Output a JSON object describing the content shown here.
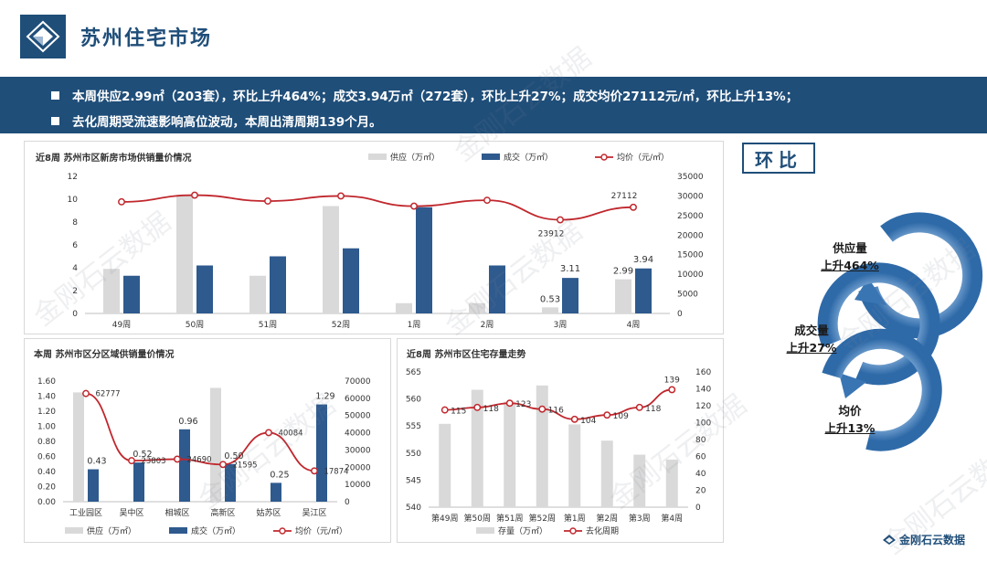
{
  "header": {
    "title": "苏州住宅市场"
  },
  "summary": [
    "本周供应2.99㎡（203套），环比上升464%；成交3.94万㎡（272套），环比上升27%；成交均价27112元/㎡，环比上升13%；",
    "去化周期受流速影响高位波动，本周出清周期139个月。"
  ],
  "watermark": "金刚石云数据",
  "footer": {
    "brand": "金刚石云数据"
  },
  "cycle": {
    "title": "环比",
    "items": [
      {
        "label": "供应量",
        "value": "上升464%"
      },
      {
        "label": "成交量",
        "value": "上升27%"
      },
      {
        "label": "均价",
        "value": "上升13%"
      }
    ]
  },
  "colors": {
    "supply": "#d9d9d9",
    "deal": "#2e5a8e",
    "price": "#c0272d",
    "brand": "#1f4e79"
  },
  "chart_data": [
    {
      "type": "bar",
      "title": "近8周  苏州市区新房市场供销量价情况",
      "categories": [
        "49周",
        "50周",
        "51周",
        "52周",
        "1周",
        "2周",
        "3周",
        "4周"
      ],
      "series": [
        {
          "name": "供应（万㎡）",
          "kind": "bar",
          "axis": "left",
          "values": [
            3.9,
            10.3,
            3.3,
            9.4,
            0.9,
            0.9,
            0.53,
            2.99
          ]
        },
        {
          "name": "成交（万㎡）",
          "kind": "bar",
          "axis": "left",
          "values": [
            3.3,
            4.2,
            5.0,
            5.7,
            9.3,
            4.2,
            3.11,
            3.94
          ]
        },
        {
          "name": "均价（元/㎡）",
          "kind": "line",
          "axis": "right",
          "values": [
            28500,
            30200,
            28700,
            30000,
            27400,
            28900,
            23912,
            27112
          ]
        }
      ],
      "data_labels": {
        "bars": [
          "",
          "",
          "",
          "",
          "",
          "",
          "0.53|3.11",
          "2.99|3.94"
        ],
        "line": [
          "",
          "",
          "",
          "",
          "",
          "",
          "23912",
          "27112"
        ]
      },
      "ylim_left": [
        0,
        12
      ],
      "yticks_left": [
        "0",
        "2",
        "4",
        "6",
        "8",
        "10",
        "12"
      ],
      "ylim_right": [
        0,
        35000
      ],
      "yticks_right": [
        "0",
        "5000",
        "10000",
        "15000",
        "20000",
        "25000",
        "30000",
        "35000"
      ],
      "legend": "top"
    },
    {
      "type": "bar",
      "title": "本周  苏州市区分区域供销量价情况",
      "categories": [
        "工业园区",
        "吴中区",
        "相城区",
        "高新区",
        "姑苏区",
        "吴江区"
      ],
      "series": [
        {
          "name": "供应（万㎡）",
          "kind": "bar",
          "axis": "left",
          "values": [
            1.45,
            0,
            0,
            1.51,
            0,
            0
          ]
        },
        {
          "name": "成交（万㎡）",
          "kind": "bar",
          "axis": "left",
          "values": [
            0.43,
            0.52,
            0.96,
            0.5,
            0.25,
            1.29
          ]
        },
        {
          "name": "均价（元/㎡）",
          "kind": "line",
          "axis": "right",
          "values": [
            62777,
            23803,
            24690,
            21595,
            40084,
            17874
          ]
        }
      ],
      "data_labels": {
        "deal": [
          "0.43",
          "0.52",
          "0.96",
          "0.50",
          "0.25",
          "1.29"
        ],
        "price": [
          "62777",
          "23803",
          "24690",
          "21595",
          "40084",
          "17874"
        ]
      },
      "ylim_left": [
        0,
        1.6
      ],
      "yticks_left": [
        "0.00",
        "0.20",
        "0.40",
        "0.60",
        "0.80",
        "1.00",
        "1.20",
        "1.40",
        "1.60"
      ],
      "ylim_right": [
        0,
        70000
      ],
      "yticks_right": [
        "0",
        "10000",
        "20000",
        "30000",
        "40000",
        "50000",
        "60000",
        "70000"
      ],
      "legend": "bottom"
    },
    {
      "type": "bar",
      "title": "近8周  苏州市区住宅存量走势",
      "categories": [
        "第49周",
        "第50周",
        "第51周",
        "第52周",
        "第1周",
        "第2周",
        "第3周",
        "第4周"
      ],
      "series": [
        {
          "name": "存量（万㎡）",
          "kind": "bar",
          "axis": "left",
          "values": [
            555.4,
            561.7,
            559.5,
            562.5,
            555.3,
            552.3,
            549.7,
            548.8
          ]
        },
        {
          "name": "去化周期",
          "kind": "line",
          "axis": "right",
          "values": [
            115,
            118,
            123,
            116,
            104,
            109,
            118,
            139
          ]
        }
      ],
      "data_labels": {
        "line": [
          "115",
          "118",
          "123",
          "116",
          "104",
          "109",
          "118",
          "139"
        ]
      },
      "ylim_left": [
        540,
        565
      ],
      "yticks_left": [
        "540",
        "545",
        "550",
        "555",
        "560",
        "565"
      ],
      "ylim_right": [
        0,
        160
      ],
      "yticks_right": [
        "0",
        "20",
        "40",
        "60",
        "80",
        "100",
        "120",
        "140",
        "160"
      ],
      "legend": "bottom"
    }
  ]
}
